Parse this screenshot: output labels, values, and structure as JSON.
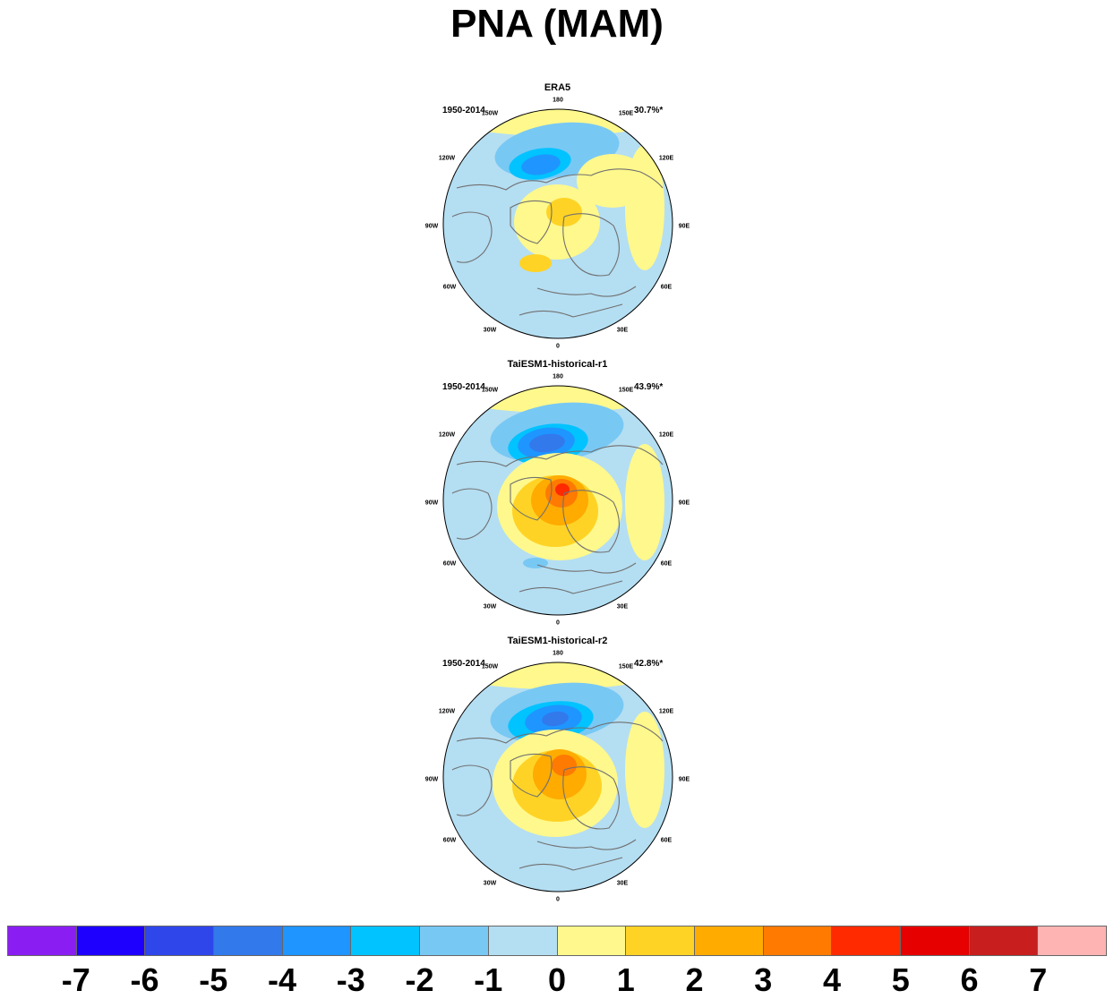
{
  "title": "PNA (MAM)",
  "panels": [
    {
      "name": "ERA5",
      "period": "1950-2014",
      "variance": "30.7%*"
    },
    {
      "name": "TaiESM1-historical-r1",
      "period": "1950-2014",
      "variance": "43.9%*"
    },
    {
      "name": "TaiESM1-historical-r2",
      "period": "1950-2014",
      "variance": "42.8%*"
    }
  ],
  "lon_labels": [
    "180",
    "150E",
    "120E",
    "90E",
    "60E",
    "30E",
    "0",
    "30W",
    "60W",
    "90W",
    "120W",
    "150W"
  ],
  "colorbar": {
    "colors": [
      "#8a1ef2",
      "#1e00ff",
      "#2f46eb",
      "#3279ec",
      "#1f95ff",
      "#00c3ff",
      "#78c8f4",
      "#b4def2",
      "#fff88c",
      "#ffd325",
      "#ffab00",
      "#ff7a00",
      "#ff2a00",
      "#e60000",
      "#c81e1e",
      "#ffb4b4"
    ],
    "labels": [
      "-7",
      "-6",
      "-5",
      "-4",
      "-3",
      "-2",
      "-1",
      "0",
      "1",
      "2",
      "3",
      "4",
      "5",
      "6",
      "7"
    ]
  }
}
